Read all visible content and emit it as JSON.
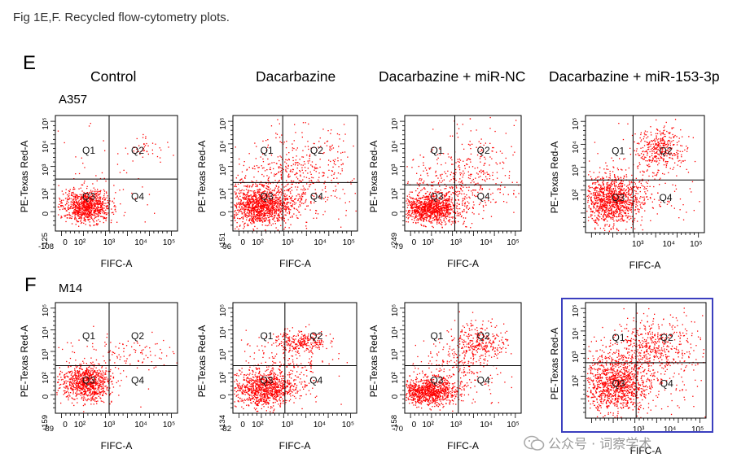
{
  "caption": "Fig 1E,F. Recycled flow-cytometry plots.",
  "panels": {
    "E": "E",
    "F": "F"
  },
  "columns": [
    "Control",
    "Dacarbazine",
    "Dacarbazine + miR-NC",
    "Dacarbazine + miR-153-3p"
  ],
  "rows": [
    {
      "letter": "E",
      "cell_line": "A357"
    },
    {
      "letter": "F",
      "cell_line": "M14"
    }
  ],
  "axis": {
    "xlabel": "FIFC-A",
    "ylabel": "PE-Texas Red-A"
  },
  "quadrants": [
    "Q1",
    "Q2",
    "Q3",
    "Q4"
  ],
  "tick_labels": {
    "x": [
      "0",
      "10²",
      "10³",
      "10⁴",
      "10⁵"
    ],
    "y": [
      "0",
      "10²",
      "10³",
      "10⁴",
      "10⁵"
    ]
  },
  "plots": [
    {
      "row": 0,
      "col": 0,
      "xmin": "-108",
      "ymin": "-125"
    },
    {
      "row": 0,
      "col": 1,
      "xmin": "-96",
      "ymin": "-151"
    },
    {
      "row": 0,
      "col": 2,
      "xmin": "-79",
      "ymin": "-249"
    },
    {
      "row": 0,
      "col": 3,
      "xmin": "",
      "ymin": ""
    },
    {
      "row": 1,
      "col": 0,
      "xmin": "-89",
      "ymin": "-159"
    },
    {
      "row": 1,
      "col": 1,
      "xmin": "-82",
      "ymin": "-134"
    },
    {
      "row": 1,
      "col": 2,
      "xmin": "-70",
      "ymin": "-158"
    },
    {
      "row": 1,
      "col": 3,
      "xmin": "",
      "ymin": ""
    }
  ],
  "highlighted_plot": {
    "row": 1,
    "col": 3
  },
  "colors": {
    "dots": "#ff0000",
    "highlight_border": "#3b3fbf"
  },
  "watermark": "公众号 · 词察学术"
}
